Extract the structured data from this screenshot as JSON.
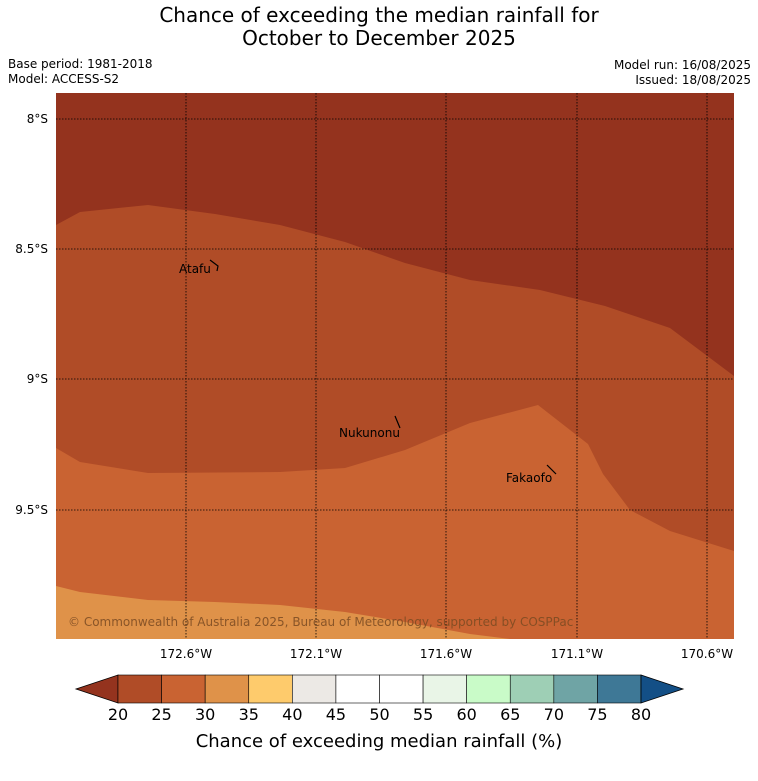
{
  "title": {
    "line1": "Chance of exceeding the median rainfall for",
    "line2": "October to December 2025"
  },
  "meta": {
    "base_period": "Base period: 1981-2018",
    "model": "Model: ACCESS-S2",
    "model_run": "Model run: 16/08/2025",
    "issued": "Issued: 18/08/2025"
  },
  "map": {
    "lat_labels": [
      "8°S",
      "8.5°S",
      "9°S",
      "9.5°S"
    ],
    "lon_labels": [
      "172.6°W",
      "172.1°W",
      "171.6°W",
      "171.1°W",
      "170.6°W"
    ],
    "places": [
      "Atafu",
      "Nukunonu",
      "Fakaofo"
    ],
    "copyright": "© Commonwealth of Australia 2025, Bureau of Meteorology, supported by COSPPac",
    "category_colors": {
      "below_20": "#94331e",
      "20_25": "#b04c27",
      "25_30": "#c96332",
      "30_35": "#df9249"
    }
  },
  "colorbar": {
    "ticks": [
      "20",
      "25",
      "30",
      "35",
      "40",
      "45",
      "50",
      "55",
      "60",
      "65",
      "70",
      "75",
      "80"
    ],
    "colors": [
      "#b04c27",
      "#c96332",
      "#df9249",
      "#fecb6c",
      "#ece9e5",
      "#ffffff",
      "#ffffff",
      "#e9f5e7",
      "#c9fbc8",
      "#9ecfb5",
      "#6fa4a5",
      "#3e7896"
    ],
    "under_color": "#94331e",
    "over_color": "#134f86",
    "label": "Chance of exceeding median rainfall (%)"
  }
}
